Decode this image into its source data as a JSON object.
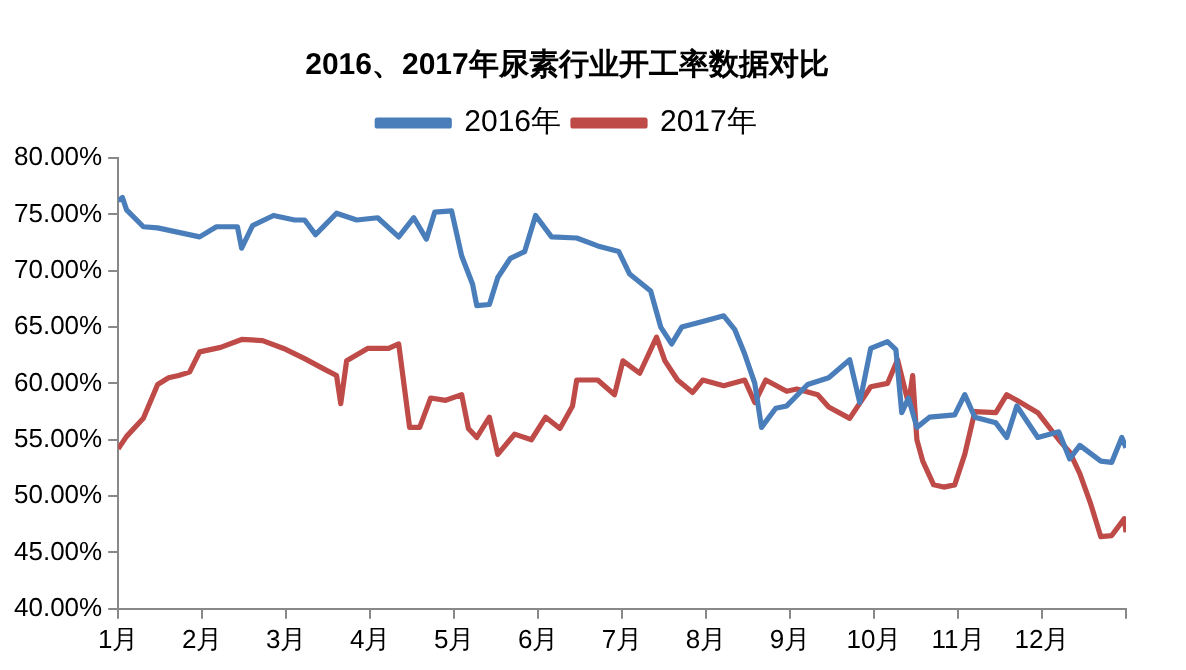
{
  "chart_data": {
    "type": "line",
    "title": "2016、2017年尿素行业开工率数据对比",
    "legend": "top",
    "grid": false,
    "marker": "none",
    "line_style": "solid",
    "xlim": [
      1,
      13
    ],
    "xticks": [
      {
        "value": 1,
        "label": "1月"
      },
      {
        "value": 2,
        "label": "2月"
      },
      {
        "value": 3,
        "label": "3月"
      },
      {
        "value": 4,
        "label": "4月"
      },
      {
        "value": 5,
        "label": "5月"
      },
      {
        "value": 6,
        "label": "6月"
      },
      {
        "value": 7,
        "label": "7月"
      },
      {
        "value": 8,
        "label": "8月"
      },
      {
        "value": 9,
        "label": "9月"
      },
      {
        "value": 10,
        "label": "10月"
      },
      {
        "value": 11,
        "label": "11月"
      },
      {
        "value": 12,
        "label": "12月"
      },
      {
        "value": 13,
        "label": null
      }
    ],
    "ylim": [
      40,
      80
    ],
    "yticks": [
      {
        "value": 40,
        "label": "40.00%"
      },
      {
        "value": 45,
        "label": "45.00%"
      },
      {
        "value": 50,
        "label": "50.00%"
      },
      {
        "value": 55,
        "label": "55.00%"
      },
      {
        "value": 60,
        "label": "60.00%"
      },
      {
        "value": 65,
        "label": "65.00%"
      },
      {
        "value": 70,
        "label": "70.00%"
      },
      {
        "value": 75,
        "label": "75.00%"
      },
      {
        "value": 80,
        "label": "80.00%"
      }
    ],
    "series": [
      {
        "name": "2016年",
        "color": "#4a7ebb",
        "x": [
          1.0,
          1.05,
          1.1,
          1.3,
          1.47,
          1.97,
          2.17,
          2.42,
          2.47,
          2.6,
          2.85,
          3.1,
          3.22,
          3.35,
          3.6,
          3.84,
          4.09,
          4.34,
          4.52,
          4.67,
          4.77,
          4.97,
          5.09,
          5.22,
          5.27,
          5.42,
          5.52,
          5.67,
          5.84,
          5.97,
          6.16,
          6.46,
          6.71,
          6.96,
          7.09,
          7.34,
          7.46,
          7.59,
          7.71,
          7.96,
          8.21,
          8.34,
          8.46,
          8.58,
          8.66,
          8.83,
          8.96,
          9.21,
          9.46,
          9.71,
          9.83,
          9.96,
          10.16,
          10.26,
          10.33,
          10.41,
          10.51,
          10.66,
          10.96,
          11.08,
          11.2,
          11.45,
          11.58,
          11.7,
          11.95,
          12.2,
          12.33,
          12.45,
          12.7,
          12.83,
          12.95,
          13.0
        ],
        "values": [
          76.2,
          76.5,
          75.4,
          73.9,
          73.8,
          73.0,
          73.9,
          73.9,
          72.0,
          74.0,
          74.9,
          74.5,
          74.5,
          73.2,
          75.1,
          74.5,
          74.7,
          73.0,
          74.7,
          72.8,
          75.2,
          75.3,
          71.3,
          68.8,
          66.9,
          67.0,
          69.4,
          71.1,
          71.7,
          74.9,
          73.0,
          72.9,
          72.2,
          71.7,
          69.7,
          68.2,
          65.0,
          63.5,
          65.0,
          65.5,
          66.0,
          64.8,
          62.6,
          60.0,
          56.1,
          57.8,
          58.0,
          59.9,
          60.5,
          62.1,
          58.3,
          63.1,
          63.7,
          63.0,
          57.4,
          58.7,
          56.1,
          57.0,
          57.2,
          59.0,
          57.0,
          56.5,
          55.2,
          58.0,
          55.2,
          55.7,
          53.3,
          54.5,
          53.1,
          53.0,
          55.2,
          54.3
        ]
      },
      {
        "name": "2017年",
        "color": "#be4b48",
        "x": [
          1.0,
          1.1,
          1.3,
          1.47,
          1.6,
          1.72,
          1.85,
          1.97,
          2.22,
          2.47,
          2.72,
          2.97,
          3.22,
          3.47,
          3.6,
          3.65,
          3.72,
          3.97,
          4.22,
          4.34,
          4.47,
          4.59,
          4.72,
          4.9,
          5.09,
          5.17,
          5.27,
          5.42,
          5.52,
          5.72,
          5.92,
          6.09,
          6.26,
          6.41,
          6.46,
          6.71,
          6.91,
          7.01,
          7.21,
          7.41,
          7.51,
          7.66,
          7.84,
          7.96,
          8.21,
          8.46,
          8.58,
          8.71,
          8.96,
          9.08,
          9.33,
          9.46,
          9.71,
          9.96,
          10.16,
          10.28,
          10.41,
          10.46,
          10.51,
          10.58,
          10.71,
          10.83,
          10.96,
          11.08,
          11.2,
          11.45,
          11.58,
          11.7,
          11.95,
          12.2,
          12.33,
          12.45,
          12.58,
          12.7,
          12.83,
          12.98,
          13.0
        ],
        "values": [
          54.2,
          55.3,
          56.9,
          59.9,
          60.5,
          60.7,
          61.0,
          62.8,
          63.2,
          63.9,
          63.8,
          63.1,
          62.2,
          61.2,
          60.7,
          58.2,
          62.0,
          63.1,
          63.1,
          63.5,
          56.1,
          56.1,
          58.7,
          58.5,
          59.0,
          56.0,
          55.2,
          57.0,
          53.7,
          55.5,
          55.0,
          57.0,
          56.0,
          58.0,
          60.3,
          60.3,
          59.0,
          62.0,
          60.9,
          64.1,
          62.0,
          60.3,
          59.2,
          60.3,
          59.8,
          60.3,
          58.3,
          60.3,
          59.3,
          59.5,
          59.0,
          57.9,
          56.9,
          59.7,
          60.0,
          62.1,
          58.2,
          60.7,
          55.0,
          53.1,
          51.0,
          50.8,
          51.0,
          53.7,
          57.5,
          57.4,
          59.0,
          58.5,
          57.4,
          55.0,
          53.9,
          52.0,
          49.3,
          46.4,
          46.5,
          48.0,
          46.8
        ]
      }
    ]
  }
}
